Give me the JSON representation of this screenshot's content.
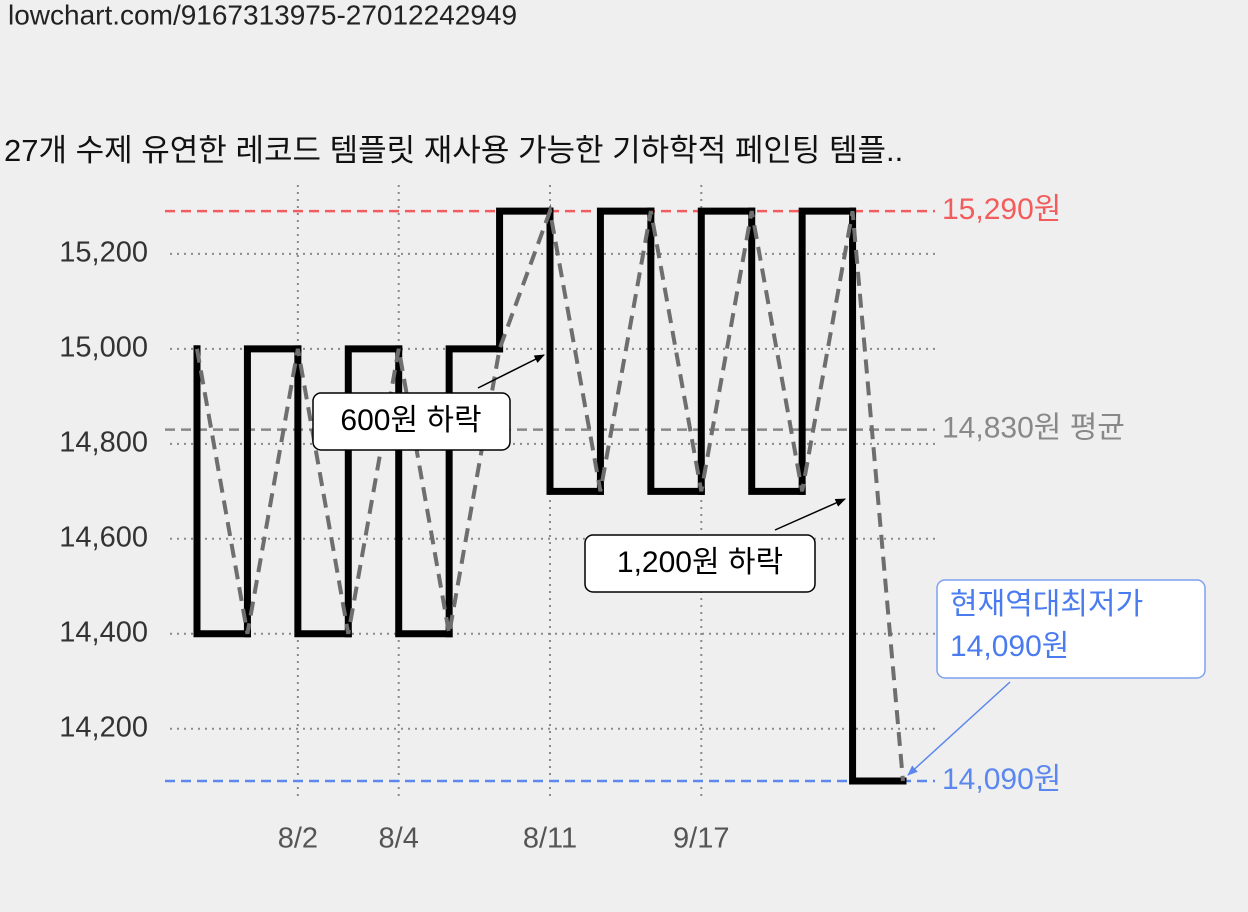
{
  "url": "lowchart.com/9167313975-27012242949",
  "chart_data": {
    "type": "line",
    "step": "before",
    "title": "27개 수제 유연한 레코드 템플릿 재사용 가능한 기하학적 페인팅 템플..",
    "categories": [
      null,
      null,
      "8/2",
      null,
      "8/4",
      null,
      null,
      "8/11",
      null,
      null,
      "9/17",
      null,
      null,
      null,
      null
    ],
    "series": [
      {
        "color": "#000000",
        "values": [
          15000,
          14400,
          15000,
          14400,
          15000,
          14400,
          15000,
          15290,
          14700,
          15290,
          14700,
          15290,
          14700,
          15290,
          14090
        ]
      }
    ],
    "trend_color": "#6e6e6e",
    "ylim": [
      14050,
      15345
    ],
    "yticks": [
      {
        "value": 14200,
        "label": "14,200"
      },
      {
        "value": 14400,
        "label": "14,400"
      },
      {
        "value": 14600,
        "label": "14,600"
      },
      {
        "value": 14800,
        "label": "14,800"
      },
      {
        "value": 15000,
        "label": "15,000"
      },
      {
        "value": 15200,
        "label": "15,200"
      }
    ],
    "grid": true,
    "reference_lines": [
      {
        "value": 15290,
        "label": "15,290원",
        "color": "#f25c5c"
      },
      {
        "value": 14830,
        "label": "14,830원 평균",
        "color": "#888888"
      },
      {
        "value": 14090,
        "label": "14,090원",
        "color": "#5b87ee"
      }
    ],
    "annotations": [
      {
        "text": "600원 하락"
      },
      {
        "text": "1,200원 하락"
      },
      {
        "lines": [
          "현재역대최저가",
          "14,090원"
        ]
      }
    ]
  }
}
